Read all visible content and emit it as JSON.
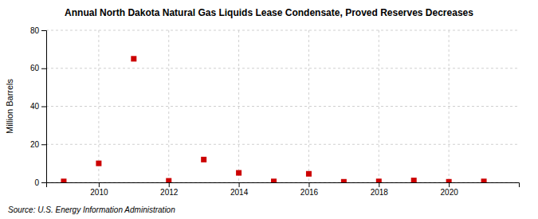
{
  "chart_data": {
    "type": "scatter",
    "title": "Annual North Dakota Natural Gas Liquids Lease Condensate, Proved Reserves Decreases",
    "ylabel": "Million Barrels",
    "annotations": [
      "Source: U.S. Energy Information Administration"
    ],
    "x": [
      2009,
      2010,
      2011,
      2012,
      2013,
      2014,
      2015,
      2016,
      2017,
      2018,
      2019,
      2020,
      2021
    ],
    "values": [
      0.5,
      10,
      65,
      0.8,
      12,
      5,
      0.5,
      4.5,
      0.3,
      0.5,
      1.0,
      0.3,
      0.5
    ],
    "color": "#cc0000",
    "marker": "square",
    "xlim": [
      2008.5,
      2022.0
    ],
    "xticks": [
      2010,
      2012,
      2014,
      2016,
      2018,
      2020
    ],
    "ylim": [
      0,
      80
    ],
    "yticks": [
      0,
      20,
      40,
      60,
      80
    ],
    "grid": true
  }
}
